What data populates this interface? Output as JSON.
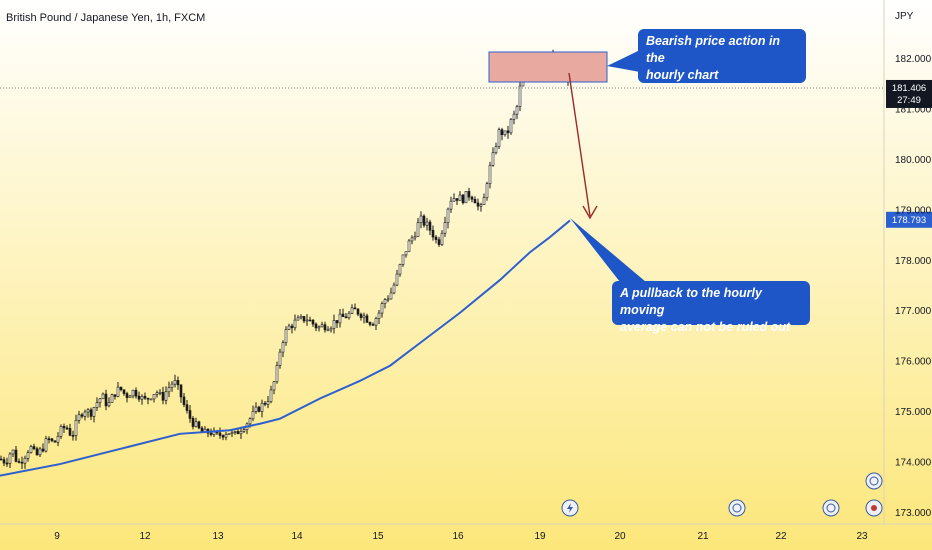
{
  "chart_title": "British Pound / Japanese Yen, 1h, FXCM",
  "currency": "JPY",
  "colors": {
    "background_top": "#ffffff",
    "background_bottom": "#fce77a",
    "candle": "#1a1a1a",
    "moving_average": "#2c5fd0",
    "callout_fill": "#1f56c7",
    "zone_fill": "#e8a9a0",
    "zone_border": "#2c5fd0",
    "arrow": "#9b2a2a",
    "price_tag_current": "#131722",
    "price_tag_ma": "#2c5fd0"
  },
  "chart_data": {
    "type": "candlestick",
    "ylim": [
      172.9,
      182.55
    ],
    "y_ticks": [
      "173.000",
      "174.000",
      "175.000",
      "176.000",
      "177.000",
      "178.000",
      "179.000",
      "180.000",
      "181.000",
      "182.000"
    ],
    "x_ticks": [
      "9",
      "12",
      "13",
      "14",
      "15",
      "16",
      "19",
      "20",
      "21",
      "22",
      "23"
    ],
    "current_price": "181.406",
    "countdown": "27:49",
    "moving_average_value": "178.793",
    "price_path": [
      [
        0,
        174.05
      ],
      [
        6,
        174.0
      ],
      [
        12,
        174.25
      ],
      [
        18,
        173.95
      ],
      [
        24,
        174.1
      ],
      [
        30,
        174.3
      ],
      [
        36,
        174.1
      ],
      [
        42,
        174.25
      ],
      [
        48,
        174.45
      ],
      [
        54,
        174.35
      ],
      [
        60,
        174.6
      ],
      [
        66,
        174.7
      ],
      [
        72,
        174.5
      ],
      [
        78,
        174.85
      ],
      [
        84,
        175.05
      ],
      [
        90,
        174.95
      ],
      [
        96,
        175.15
      ],
      [
        102,
        175.3
      ],
      [
        108,
        175.1
      ],
      [
        114,
        175.35
      ],
      [
        120,
        175.45
      ],
      [
        126,
        175.3
      ],
      [
        132,
        175.4
      ],
      [
        138,
        175.35
      ],
      [
        144,
        175.2
      ],
      [
        150,
        175.3
      ],
      [
        156,
        175.4
      ],
      [
        162,
        175.25
      ],
      [
        168,
        175.45
      ],
      [
        174,
        175.6
      ],
      [
        180,
        175.35
      ],
      [
        186,
        175.0
      ],
      [
        192,
        174.8
      ],
      [
        198,
        174.65
      ],
      [
        204,
        174.55
      ],
      [
        210,
        174.6
      ],
      [
        216,
        174.5
      ],
      [
        222,
        174.55
      ],
      [
        228,
        174.6
      ],
      [
        234,
        174.5
      ],
      [
        240,
        174.65
      ],
      [
        246,
        174.75
      ],
      [
        252,
        174.9
      ],
      [
        258,
        175.05
      ],
      [
        264,
        175.15
      ],
      [
        270,
        175.3
      ],
      [
        276,
        175.7
      ],
      [
        280,
        176.2
      ],
      [
        284,
        176.5
      ],
      [
        288,
        176.65
      ],
      [
        294,
        176.75
      ],
      [
        300,
        176.8
      ],
      [
        306,
        176.85
      ],
      [
        312,
        176.75
      ],
      [
        318,
        176.65
      ],
      [
        324,
        176.7
      ],
      [
        330,
        176.7
      ],
      [
        336,
        176.8
      ],
      [
        342,
        176.85
      ],
      [
        348,
        176.9
      ],
      [
        354,
        177.0
      ],
      [
        360,
        176.95
      ],
      [
        366,
        176.85
      ],
      [
        372,
        176.75
      ],
      [
        378,
        176.9
      ],
      [
        384,
        177.2
      ],
      [
        390,
        177.3
      ],
      [
        396,
        177.6
      ],
      [
        402,
        178.0
      ],
      [
        408,
        178.3
      ],
      [
        414,
        178.5
      ],
      [
        420,
        178.8
      ],
      [
        426,
        178.7
      ],
      [
        432,
        178.55
      ],
      [
        438,
        178.3
      ],
      [
        444,
        178.75
      ],
      [
        450,
        179.2
      ],
      [
        456,
        179.25
      ],
      [
        462,
        179.2
      ],
      [
        468,
        179.3
      ],
      [
        474,
        179.25
      ],
      [
        480,
        178.95
      ],
      [
        484,
        179.2
      ],
      [
        488,
        179.7
      ],
      [
        492,
        179.95
      ],
      [
        496,
        180.3
      ],
      [
        500,
        180.6
      ],
      [
        504,
        180.45
      ],
      [
        508,
        180.55
      ],
      [
        512,
        180.8
      ],
      [
        516,
        180.9
      ],
      [
        520,
        181.4
      ],
      [
        524,
        181.6
      ],
      [
        528,
        181.9
      ],
      [
        532,
        182.0
      ],
      [
        536,
        181.95
      ],
      [
        540,
        181.85
      ],
      [
        544,
        182.05
      ],
      [
        548,
        181.95
      ],
      [
        552,
        182.0
      ],
      [
        556,
        181.95
      ],
      [
        560,
        181.85
      ],
      [
        564,
        181.7
      ],
      [
        568,
        181.5
      ],
      [
        570,
        181.4
      ]
    ],
    "ma_path": [
      [
        0,
        173.72
      ],
      [
        60,
        173.95
      ],
      [
        120,
        174.25
      ],
      [
        180,
        174.55
      ],
      [
        230,
        174.62
      ],
      [
        260,
        174.75
      ],
      [
        280,
        174.85
      ],
      [
        320,
        175.25
      ],
      [
        360,
        175.6
      ],
      [
        390,
        175.9
      ],
      [
        420,
        176.35
      ],
      [
        460,
        176.95
      ],
      [
        500,
        177.6
      ],
      [
        530,
        178.15
      ],
      [
        550,
        178.45
      ],
      [
        570,
        178.78
      ]
    ]
  },
  "annotations": {
    "top_callout": "Bearish price action in the\nhourly chart",
    "bottom_callout": "A pullback to the hourly moving\naverage can not be ruled out"
  },
  "icons": [
    "lightning-event-icon",
    "flag-event-icon",
    "flag-event-icon",
    "flag-event-icon",
    "flag-event-icon",
    "circle-event-icon"
  ]
}
